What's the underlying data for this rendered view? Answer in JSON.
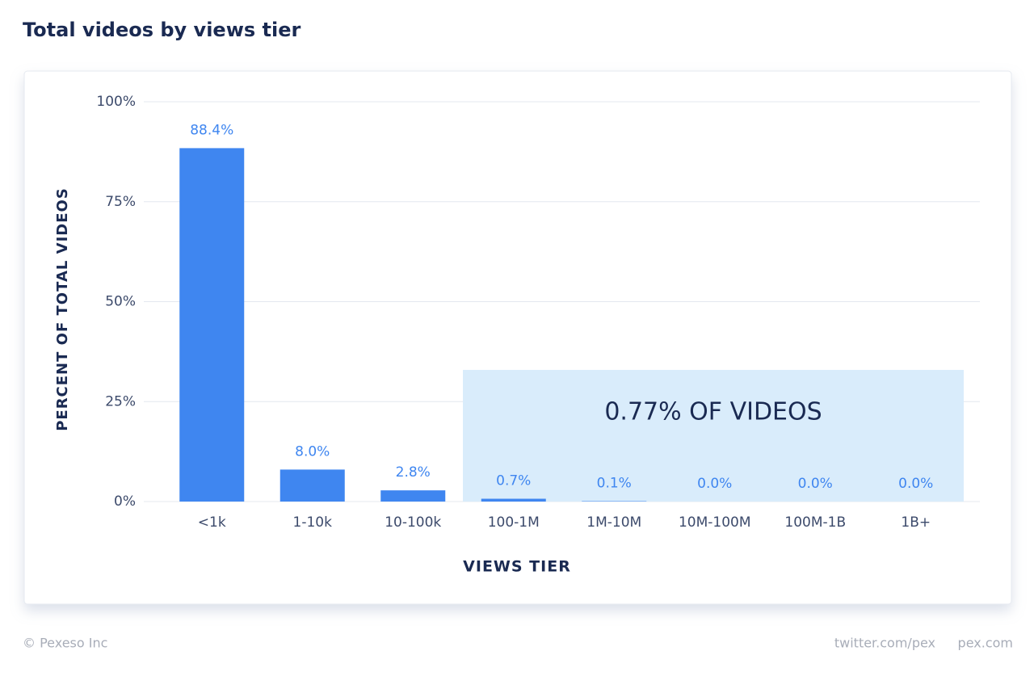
{
  "chart_data": {
    "type": "bar",
    "title": "Total videos by views tier",
    "y_label": "PERCENT OF TOTAL VIDEOS",
    "x_label": "VIEWS TIER",
    "annotation": "0.77% OF VIDEOS",
    "categories": [
      "<1k",
      "1-10k",
      "10-100k",
      "100-1M",
      "1M-10M",
      "10M-100M",
      "100M-1B",
      "1B+"
    ],
    "values": [
      88.4,
      8.0,
      2.8,
      0.7,
      0.1,
      0.0,
      0.0,
      0.0
    ],
    "value_labels": [
      "88.4%",
      "8.0%",
      "2.8%",
      "0.7%",
      "0.1%",
      "0.0%",
      "0.0%",
      "0.0%"
    ],
    "color": "#3f86f0",
    "ylim": [
      0,
      100
    ],
    "yticks": [
      {
        "value": 0,
        "label": "0%"
      },
      {
        "value": 25,
        "label": "25%"
      },
      {
        "value": 50,
        "label": "50%"
      },
      {
        "value": 75,
        "label": "75%"
      },
      {
        "value": 100,
        "label": "100%"
      }
    ],
    "grid": true
  },
  "footer": {
    "left": "© Pexeso Inc",
    "right": [
      "twitter.com/pex",
      "pex.com"
    ]
  }
}
